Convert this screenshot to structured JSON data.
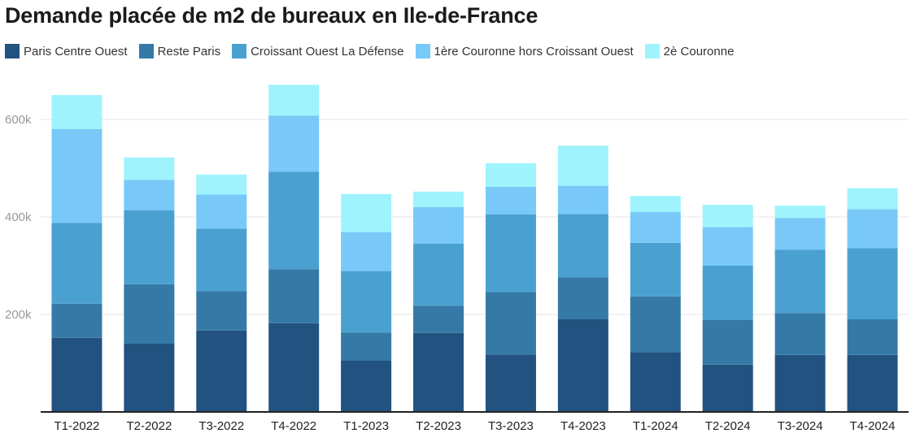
{
  "chart_data": {
    "type": "bar",
    "stacked": true,
    "title": "Demande placée de m2 de bureaux en Ile-de-France",
    "xlabel": "",
    "ylabel": "",
    "ylim": [
      0,
      700000
    ],
    "yticks": [
      200000,
      400000,
      600000
    ],
    "ytick_labels": [
      "200k",
      "400k",
      "600k"
    ],
    "grid": true,
    "legend_position": "top-left",
    "categories": [
      "T1-2022",
      "T2-2022",
      "T3-2022",
      "T4-2022",
      "T1-2023",
      "T2-2023",
      "T3-2023",
      "T4-2023",
      "T1-2024",
      "T2-2024",
      "T3-2024",
      "T4-2024"
    ],
    "series": [
      {
        "name": "Paris Centre Ouest",
        "color": "#22527f",
        "values": [
          152000,
          140000,
          167000,
          182000,
          105000,
          162000,
          118000,
          190000,
          123000,
          97000,
          117000,
          117000
        ]
      },
      {
        "name": "Reste Paris",
        "color": "#3579a7",
        "values": [
          70000,
          122000,
          81000,
          111000,
          58000,
          56000,
          128000,
          86000,
          114000,
          92000,
          86000,
          73000
        ]
      },
      {
        "name": "Croissant Ouest La Défense",
        "color": "#4aa1d1",
        "values": [
          166000,
          152000,
          128000,
          200000,
          126000,
          127000,
          159000,
          130000,
          110000,
          111000,
          130000,
          146000
        ]
      },
      {
        "name": "1ère Couronne hors Croissant Ouest",
        "color": "#78c9f8",
        "values": [
          192000,
          62000,
          70000,
          115000,
          80000,
          75000,
          57000,
          58000,
          63000,
          79000,
          65000,
          80000
        ]
      },
      {
        "name": "2è Couronne",
        "color": "#9ef3fd",
        "values": [
          70000,
          46000,
          41000,
          63000,
          78000,
          32000,
          48000,
          82000,
          33000,
          46000,
          25000,
          43000
        ]
      }
    ]
  }
}
